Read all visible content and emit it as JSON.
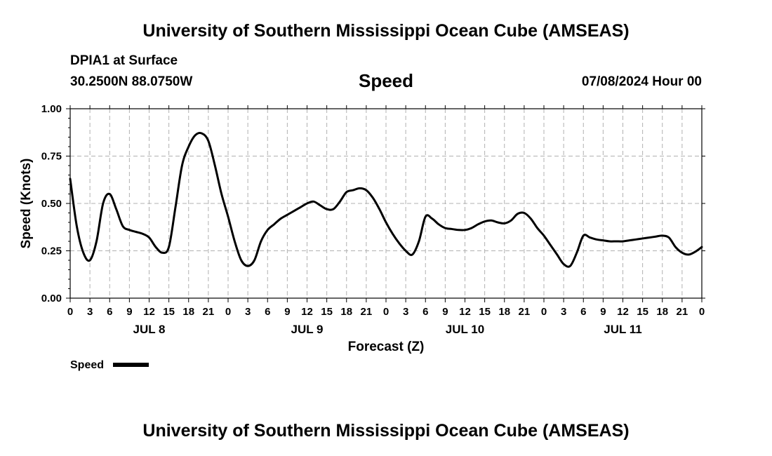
{
  "header": {
    "top_title": "University of Southern Mississippi Ocean Cube (AMSEAS)",
    "bottom_title": "University of Southern Mississippi Ocean Cube (AMSEAS)",
    "station": "DPIA1 at Surface",
    "coords": "30.2500N  88.0750W",
    "plot_title": "Speed",
    "datetime": "07/08/2024 Hour 00"
  },
  "legend": {
    "label": "Speed",
    "color": "#000000"
  },
  "chart_data": {
    "type": "line",
    "title": "Speed",
    "xlabel": "Forecast (Z)",
    "ylabel": "Speed (Knots)",
    "xlim": [
      0,
      96
    ],
    "ylim": [
      0,
      1
    ],
    "grid": true,
    "legend_position": "bottom-left",
    "yticks": [
      0,
      0.25,
      0.5,
      0.75,
      1.0
    ],
    "ytick_labels": [
      "0.00",
      "0.25",
      "0.50",
      "0.75",
      "1.00"
    ],
    "xtick_labels": [
      "0",
      "3",
      "6",
      "9",
      "12",
      "15",
      "18",
      "21",
      "0",
      "3",
      "6",
      "9",
      "12",
      "15",
      "18",
      "21",
      "0",
      "3",
      "6",
      "9",
      "12",
      "15",
      "18",
      "21",
      "0",
      "3",
      "6",
      "9",
      "12",
      "15",
      "18",
      "21",
      "0"
    ],
    "day_labels": [
      {
        "label": "JUL 8",
        "hour": 12
      },
      {
        "label": "JUL 9",
        "hour": 36
      },
      {
        "label": "JUL 10",
        "hour": 60
      },
      {
        "label": "JUL 11",
        "hour": 84
      }
    ],
    "series": [
      {
        "name": "Speed",
        "x": [
          0,
          1,
          2,
          3,
          4,
          5,
          6,
          7,
          8,
          9,
          10,
          11,
          12,
          13,
          14,
          15,
          16,
          17,
          18,
          19,
          20,
          21,
          22,
          23,
          24,
          25,
          26,
          27,
          28,
          29,
          30,
          31,
          32,
          33,
          34,
          35,
          36,
          37,
          38,
          39,
          40,
          41,
          42,
          43,
          44,
          45,
          46,
          47,
          48,
          49,
          50,
          51,
          52,
          53,
          54,
          55,
          56,
          57,
          58,
          59,
          60,
          61,
          62,
          63,
          64,
          65,
          66,
          67,
          68,
          69,
          70,
          71,
          72,
          73,
          74,
          75,
          76,
          77,
          78,
          79,
          80,
          81,
          82,
          83,
          84,
          85,
          86,
          87,
          88,
          89,
          90,
          91,
          92,
          93,
          94,
          95,
          96
        ],
        "values": [
          0.63,
          0.38,
          0.24,
          0.2,
          0.3,
          0.5,
          0.55,
          0.47,
          0.38,
          0.36,
          0.35,
          0.34,
          0.32,
          0.27,
          0.24,
          0.27,
          0.48,
          0.7,
          0.8,
          0.86,
          0.87,
          0.83,
          0.7,
          0.55,
          0.43,
          0.3,
          0.2,
          0.17,
          0.2,
          0.3,
          0.36,
          0.39,
          0.42,
          0.44,
          0.46,
          0.48,
          0.5,
          0.51,
          0.49,
          0.47,
          0.47,
          0.51,
          0.56,
          0.57,
          0.58,
          0.57,
          0.53,
          0.47,
          0.4,
          0.34,
          0.29,
          0.25,
          0.23,
          0.3,
          0.43,
          0.42,
          0.39,
          0.37,
          0.365,
          0.36,
          0.36,
          0.37,
          0.39,
          0.405,
          0.41,
          0.4,
          0.395,
          0.41,
          0.445,
          0.45,
          0.42,
          0.37,
          0.33,
          0.28,
          0.23,
          0.18,
          0.17,
          0.24,
          0.33,
          0.32,
          0.31,
          0.305,
          0.3,
          0.3,
          0.3,
          0.305,
          0.31,
          0.315,
          0.32,
          0.325,
          0.33,
          0.32,
          0.27,
          0.24,
          0.23,
          0.245,
          0.27
        ]
      }
    ]
  }
}
